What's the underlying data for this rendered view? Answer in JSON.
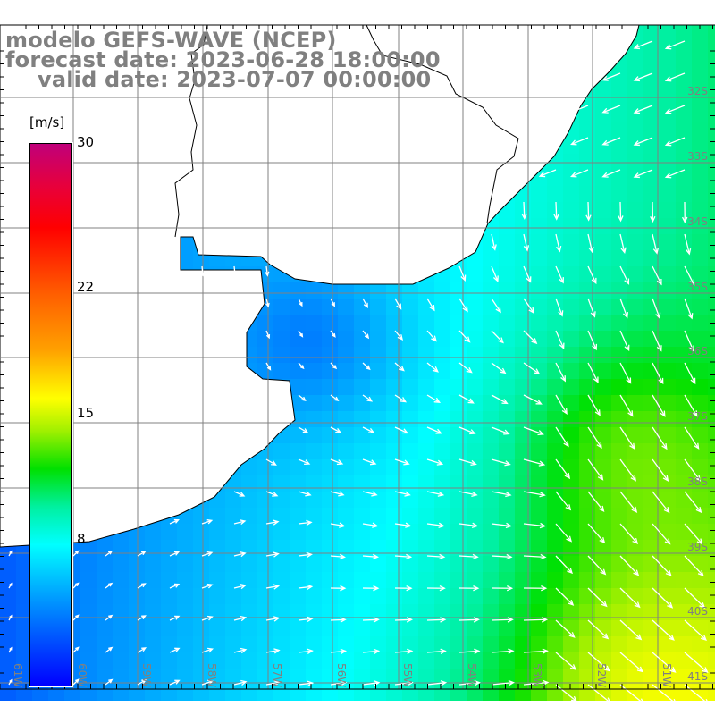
{
  "title": {
    "model": "modelo GEFS-WAVE (NCEP)",
    "forecast": "forecast date: 2023-06-28 18:00:00",
    "valid": "valid date: 2023-07-07 00:00:00"
  },
  "colorbar": {
    "unit": "[m/s]",
    "min": 0,
    "max": 30,
    "ticks": [
      {
        "value": 30,
        "label": "30"
      },
      {
        "value": 22,
        "label": "22"
      },
      {
        "value": 15,
        "label": "15"
      },
      {
        "value": 8,
        "label": "8"
      }
    ],
    "stops": [
      "#c0007a",
      "#ff0000",
      "#ffa000",
      "#ffff00",
      "#00e000",
      "#00ffff",
      "#0000ff"
    ]
  },
  "map": {
    "lat_labels": [
      "32S",
      "33S",
      "34S",
      "35S",
      "36S",
      "37S",
      "38S",
      "39S",
      "40S",
      "41S"
    ],
    "lon_labels": [
      "61W",
      "60W",
      "59W",
      "58W",
      "57W",
      "56W",
      "55W",
      "54W",
      "53W",
      "52W",
      "51W"
    ],
    "grid_color": "#808080",
    "land_color": "#ffffff",
    "arrow_color": "#ffffff"
  }
}
